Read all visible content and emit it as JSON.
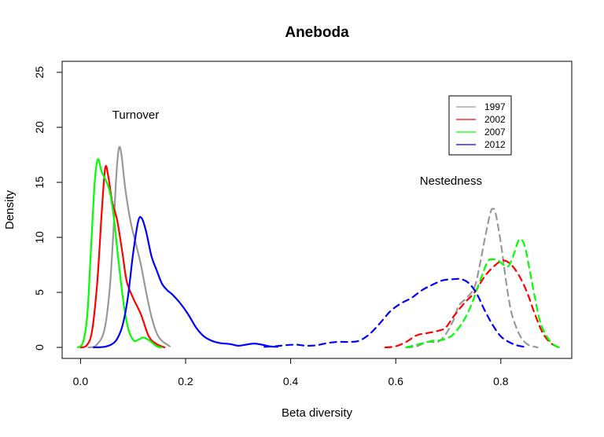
{
  "chart_data": {
    "type": "line",
    "title": "Aneboda",
    "xlabel": "Beta diversity",
    "ylabel": "Density",
    "xlim": [
      -0.035,
      0.935
    ],
    "ylim": [
      -1,
      26
    ],
    "xticks": [
      0.0,
      0.2,
      0.4,
      0.6,
      0.8
    ],
    "xtick_labels": [
      "0.0",
      "0.2",
      "0.4",
      "0.6",
      "0.8"
    ],
    "yticks": [
      0,
      5,
      10,
      15,
      20,
      25
    ],
    "ytick_labels": [
      "0",
      "5",
      "10",
      "15",
      "20",
      "25"
    ],
    "legend": {
      "position": "top-right",
      "entries": [
        {
          "label": "1997",
          "color": "#999999"
        },
        {
          "label": "2002",
          "color": "#ff0000"
        },
        {
          "label": "2007",
          "color": "#00ff00"
        },
        {
          "label": "2012",
          "color": "#0000ff"
        }
      ]
    },
    "annotations": [
      {
        "text": "Turnover",
        "x": 0.105,
        "y": 20.8
      },
      {
        "text": "Nestedness",
        "x": 0.705,
        "y": 14.8
      }
    ],
    "series": [
      {
        "name": "1997",
        "group": "Turnover",
        "color": "#999999",
        "dash": false,
        "points": [
          [
            0.015,
            0
          ],
          [
            0.03,
            0.2
          ],
          [
            0.045,
            1.5
          ],
          [
            0.055,
            5
          ],
          [
            0.062,
            10
          ],
          [
            0.068,
            15.5
          ],
          [
            0.073,
            18.1
          ],
          [
            0.078,
            17.5
          ],
          [
            0.085,
            14.5
          ],
          [
            0.095,
            11.5
          ],
          [
            0.105,
            9.5
          ],
          [
            0.115,
            7.5
          ],
          [
            0.125,
            5
          ],
          [
            0.135,
            2.8
          ],
          [
            0.145,
            1.3
          ],
          [
            0.155,
            0.6
          ],
          [
            0.17,
            0.1
          ]
        ]
      },
      {
        "name": "2002",
        "group": "Turnover",
        "color": "#ff0000",
        "dash": false,
        "points": [
          [
            0.0,
            0
          ],
          [
            0.012,
            0.2
          ],
          [
            0.022,
            1.5
          ],
          [
            0.032,
            6
          ],
          [
            0.04,
            12
          ],
          [
            0.047,
            16.3
          ],
          [
            0.053,
            15.5
          ],
          [
            0.06,
            13.3
          ],
          [
            0.07,
            11.5
          ],
          [
            0.08,
            8.5
          ],
          [
            0.088,
            6
          ],
          [
            0.1,
            4.5
          ],
          [
            0.115,
            3
          ],
          [
            0.13,
            1
          ],
          [
            0.145,
            0.3
          ],
          [
            0.16,
            0
          ]
        ]
      },
      {
        "name": "2007",
        "group": "Turnover",
        "color": "#00ff00",
        "dash": false,
        "points": [
          [
            -0.005,
            0
          ],
          [
            0.005,
            0.5
          ],
          [
            0.013,
            3
          ],
          [
            0.02,
            9
          ],
          [
            0.027,
            15
          ],
          [
            0.033,
            17.1
          ],
          [
            0.04,
            16
          ],
          [
            0.047,
            15.3
          ],
          [
            0.055,
            14.3
          ],
          [
            0.063,
            12
          ],
          [
            0.072,
            8
          ],
          [
            0.082,
            4
          ],
          [
            0.092,
            1.5
          ],
          [
            0.102,
            0.6
          ],
          [
            0.11,
            0.7
          ],
          [
            0.12,
            0.9
          ],
          [
            0.132,
            0.6
          ],
          [
            0.145,
            0.1
          ],
          [
            0.155,
            0
          ]
        ]
      },
      {
        "name": "2012",
        "group": "Turnover",
        "color": "#0000ff",
        "dash": false,
        "points": [
          [
            0.025,
            0
          ],
          [
            0.045,
            0.05
          ],
          [
            0.06,
            0.3
          ],
          [
            0.07,
            0.8
          ],
          [
            0.08,
            2
          ],
          [
            0.09,
            4.5
          ],
          [
            0.1,
            8.5
          ],
          [
            0.11,
            11.5
          ],
          [
            0.117,
            11.7
          ],
          [
            0.125,
            10.5
          ],
          [
            0.135,
            8.3
          ],
          [
            0.145,
            7
          ],
          [
            0.155,
            5.8
          ],
          [
            0.165,
            5.2
          ],
          [
            0.175,
            4.8
          ],
          [
            0.19,
            4
          ],
          [
            0.205,
            3
          ],
          [
            0.22,
            1.8
          ],
          [
            0.235,
            1
          ],
          [
            0.25,
            0.6
          ],
          [
            0.265,
            0.4
          ],
          [
            0.285,
            0.3
          ],
          [
            0.3,
            0.15
          ],
          [
            0.315,
            0.25
          ],
          [
            0.33,
            0.35
          ],
          [
            0.345,
            0.25
          ],
          [
            0.36,
            0.1
          ],
          [
            0.375,
            0.05
          ]
        ]
      },
      {
        "name": "1997",
        "group": "Nestedness",
        "color": "#999999",
        "dash": true,
        "points": [
          [
            0.62,
            0
          ],
          [
            0.64,
            0.1
          ],
          [
            0.66,
            0.5
          ],
          [
            0.68,
            0.5
          ],
          [
            0.695,
            1.2
          ],
          [
            0.71,
            2.5
          ],
          [
            0.72,
            3.8
          ],
          [
            0.735,
            4.5
          ],
          [
            0.75,
            5.5
          ],
          [
            0.76,
            7.5
          ],
          [
            0.77,
            10
          ],
          [
            0.78,
            12.2
          ],
          [
            0.785,
            12.6
          ],
          [
            0.79,
            12.2
          ],
          [
            0.8,
            9.5
          ],
          [
            0.81,
            6
          ],
          [
            0.82,
            3.2
          ],
          [
            0.835,
            1.2
          ],
          [
            0.85,
            0.3
          ],
          [
            0.87,
            0
          ]
        ]
      },
      {
        "name": "2002",
        "group": "Nestedness",
        "color": "#ff0000",
        "dash": true,
        "points": [
          [
            0.58,
            0
          ],
          [
            0.6,
            0.1
          ],
          [
            0.62,
            0.5
          ],
          [
            0.64,
            1.1
          ],
          [
            0.66,
            1.3
          ],
          [
            0.68,
            1.5
          ],
          [
            0.695,
            1.8
          ],
          [
            0.71,
            2.8
          ],
          [
            0.73,
            4
          ],
          [
            0.75,
            5
          ],
          [
            0.77,
            6.5
          ],
          [
            0.79,
            7.5
          ],
          [
            0.805,
            7.9
          ],
          [
            0.82,
            7.5
          ],
          [
            0.835,
            6.5
          ],
          [
            0.85,
            5
          ],
          [
            0.865,
            3
          ],
          [
            0.88,
            1.3
          ],
          [
            0.895,
            0.4
          ],
          [
            0.91,
            0
          ]
        ]
      },
      {
        "name": "2007",
        "group": "Nestedness",
        "color": "#00ff00",
        "dash": true,
        "points": [
          [
            0.62,
            0
          ],
          [
            0.645,
            0.3
          ],
          [
            0.67,
            0.6
          ],
          [
            0.69,
            0.7
          ],
          [
            0.71,
            1.2
          ],
          [
            0.73,
            2.5
          ],
          [
            0.745,
            4
          ],
          [
            0.76,
            6
          ],
          [
            0.775,
            7.8
          ],
          [
            0.785,
            8
          ],
          [
            0.795,
            7.9
          ],
          [
            0.805,
            7.5
          ],
          [
            0.815,
            7.4
          ],
          [
            0.825,
            8.5
          ],
          [
            0.835,
            9.8
          ],
          [
            0.845,
            9.3
          ],
          [
            0.855,
            7
          ],
          [
            0.865,
            4.5
          ],
          [
            0.875,
            2.3
          ],
          [
            0.89,
            0.8
          ],
          [
            0.905,
            0.1
          ],
          [
            0.915,
            0
          ]
        ]
      },
      {
        "name": "2012",
        "group": "Nestedness",
        "color": "#0000ff",
        "dash": true,
        "points": [
          [
            0.35,
            0.05
          ],
          [
            0.37,
            0.1
          ],
          [
            0.39,
            0.2
          ],
          [
            0.41,
            0.25
          ],
          [
            0.43,
            0.15
          ],
          [
            0.45,
            0.2
          ],
          [
            0.47,
            0.4
          ],
          [
            0.49,
            0.5
          ],
          [
            0.51,
            0.5
          ],
          [
            0.53,
            0.6
          ],
          [
            0.55,
            1.2
          ],
          [
            0.57,
            2.2
          ],
          [
            0.59,
            3.3
          ],
          [
            0.61,
            4
          ],
          [
            0.63,
            4.5
          ],
          [
            0.65,
            5.2
          ],
          [
            0.67,
            5.7
          ],
          [
            0.69,
            6.1
          ],
          [
            0.71,
            6.2
          ],
          [
            0.725,
            6.2
          ],
          [
            0.74,
            5.8
          ],
          [
            0.755,
            4.8
          ],
          [
            0.77,
            3.3
          ],
          [
            0.785,
            2
          ],
          [
            0.8,
            1
          ],
          [
            0.815,
            0.5
          ],
          [
            0.83,
            0.2
          ],
          [
            0.845,
            0.05
          ]
        ]
      }
    ]
  }
}
